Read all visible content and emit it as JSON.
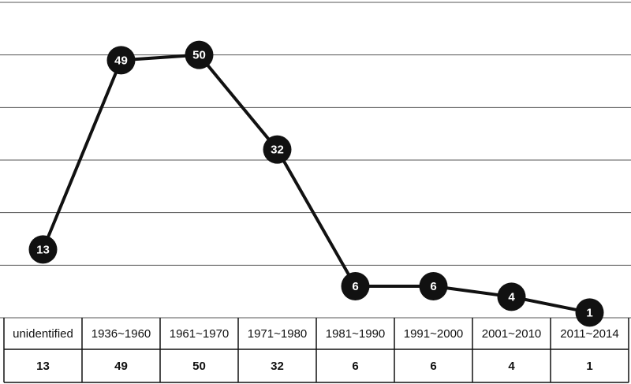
{
  "chart_data": {
    "type": "line",
    "categories": [
      "unidentified",
      "1936~1960",
      "1961~1970",
      "1971~1980",
      "1981~1990",
      "1991~2000",
      "2001~2010",
      "2011~2014"
    ],
    "values": [
      13,
      49,
      50,
      32,
      6,
      6,
      4,
      1
    ],
    "color": "#111111",
    "ylim": [
      0,
      60
    ],
    "yticks": [
      0,
      10,
      20,
      30,
      40,
      50,
      60
    ],
    "grid": true
  }
}
